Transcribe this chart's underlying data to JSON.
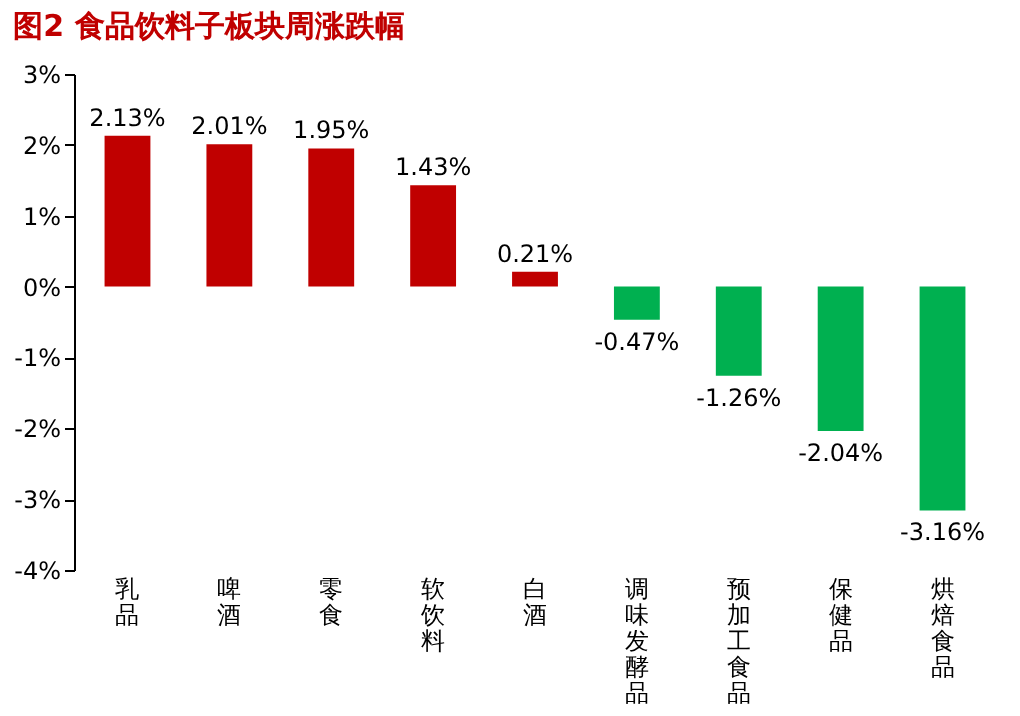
{
  "chart_data": {
    "type": "bar",
    "title": "图2  食品饮料子板块周涨跌幅",
    "categories": [
      "乳品",
      "啤酒",
      "零食",
      "软饮料",
      "白酒",
      "调味发酵品",
      "预加工食品",
      "保健品",
      "烘焙食品"
    ],
    "values": [
      2.13,
      2.01,
      1.95,
      1.43,
      0.21,
      -0.47,
      -1.26,
      -2.04,
      -3.16
    ],
    "colors": [
      "#c00000",
      "#c00000",
      "#c00000",
      "#c00000",
      "#c00000",
      "#00b050",
      "#00b050",
      "#00b050",
      "#00b050"
    ],
    "value_labels": [
      "2.13%",
      "2.01%",
      "1.95%",
      "1.43%",
      "0.21%",
      "-0.47%",
      "-1.26%",
      "-2.04%",
      "-3.16%"
    ],
    "ylim": [
      -4,
      3
    ],
    "yticks": [
      {
        "value": 3,
        "label": "3%"
      },
      {
        "value": 2,
        "label": "2%"
      },
      {
        "value": 1,
        "label": "1%"
      },
      {
        "value": 0,
        "label": "0%"
      },
      {
        "value": -1,
        "label": "-1%"
      },
      {
        "value": -2,
        "label": "-2%"
      },
      {
        "value": -3,
        "label": "-3%"
      },
      {
        "value": -4,
        "label": "-4%"
      }
    ],
    "grid": false
  }
}
